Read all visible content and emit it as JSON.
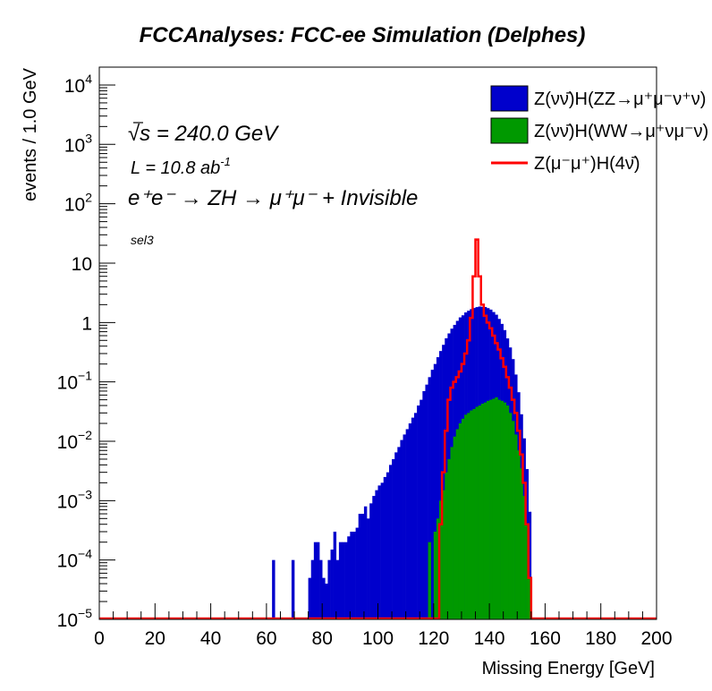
{
  "chart_data": {
    "type": "histogram",
    "title": "FCCAnalyses: FCC-ee Simulation (Delphes)",
    "xlabel": "Missing Energy [GeV]",
    "ylabel": "events / 1.0 GeV",
    "xlim": [
      0,
      200
    ],
    "ylim": [
      1e-05,
      20000
    ],
    "y_scale": "log",
    "bin_width": 1,
    "x_ticks": [
      "0",
      "20",
      "40",
      "60",
      "80",
      "100",
      "120",
      "140",
      "160",
      "180",
      "200"
    ],
    "y_ticks": [
      {
        "base": "10",
        "exp": "−5",
        "value": 1e-05
      },
      {
        "base": "10",
        "exp": "−4",
        "value": 0.0001
      },
      {
        "base": "10",
        "exp": "−3",
        "value": 0.001
      },
      {
        "base": "10",
        "exp": "−2",
        "value": 0.01
      },
      {
        "base": "10",
        "exp": "−1",
        "value": 0.1
      },
      {
        "base": "1",
        "exp": "",
        "value": 1
      },
      {
        "base": "10",
        "exp": "",
        "value": 10
      },
      {
        "base": "10",
        "exp": "2",
        "value": 100
      },
      {
        "base": "10",
        "exp": "3",
        "value": 1000
      },
      {
        "base": "10",
        "exp": "4",
        "value": 10000
      }
    ],
    "annotations": {
      "sqrt_s": "√s = 240.0 GeV",
      "lumi": "L = 10.8 ab",
      "lumi_exp": "-1",
      "process": "e⁺e⁻ → ZH → μ⁺μ⁻ + Invisible",
      "selection": "sel3"
    },
    "legend_position": "top-right",
    "series": [
      {
        "name": "Z(νν̄)H(ZZ→μ⁺μ⁻ν⁺ν)",
        "style": "stacked-fill",
        "color": "#0000cc",
        "bin_low_edges": [
          62,
          69,
          75,
          76,
          77,
          78,
          79,
          80,
          81,
          82,
          83,
          84,
          85,
          86,
          87,
          88,
          89,
          90,
          91,
          92,
          93,
          94,
          95,
          96,
          97,
          98,
          99,
          100,
          101,
          102,
          103,
          104,
          105,
          106,
          107,
          108,
          109,
          110,
          111,
          112,
          113,
          114,
          115,
          116,
          117,
          118,
          119,
          120,
          121,
          122,
          123,
          124,
          125,
          126,
          127,
          128,
          129,
          130,
          131,
          132,
          133,
          134,
          135,
          136,
          137,
          138,
          139,
          140,
          141,
          142,
          143,
          144,
          145,
          146,
          147,
          148,
          149,
          150,
          151,
          152,
          153,
          154
        ],
        "values": [
          0.0001,
          0.0001,
          5e-05,
          0.0001,
          0.0002,
          0.0002,
          0.0001,
          5e-05,
          4e-05,
          0.0001,
          0.00015,
          0.0003,
          0.0001,
          0.0002,
          0.0002,
          0.0002,
          0.00025,
          0.0003,
          0.0003,
          0.00035,
          0.0006,
          0.0006,
          0.0008,
          0.0005,
          0.0009,
          0.0012,
          0.0015,
          0.0018,
          0.002,
          0.0025,
          0.003,
          0.004,
          0.005,
          0.0065,
          0.008,
          0.0105,
          0.013,
          0.016,
          0.02,
          0.025,
          0.03,
          0.04,
          0.05,
          0.07,
          0.09,
          0.12,
          0.16,
          0.2,
          0.26,
          0.33,
          0.42,
          0.54,
          0.65,
          0.78,
          0.9,
          1.05,
          1.2,
          1.3,
          1.45,
          1.55,
          1.65,
          1.72,
          1.78,
          1.82,
          1.8,
          1.78,
          1.7,
          1.6,
          1.45,
          1.3,
          1.1,
          0.9,
          0.7,
          0.5,
          0.35,
          0.22,
          0.12,
          0.06,
          0.025,
          0.01,
          0.003,
          0.0006
        ]
      },
      {
        "name": "Z(νν̄)H(WW→μ⁺νμ⁻ν)",
        "style": "stacked-fill",
        "color": "#009900",
        "bin_low_edges": [
          118,
          120,
          121,
          122,
          123,
          124,
          125,
          126,
          127,
          128,
          129,
          130,
          131,
          132,
          133,
          134,
          135,
          136,
          137,
          138,
          139,
          140,
          141,
          142,
          143,
          144,
          145,
          146,
          147,
          148,
          149,
          150,
          151,
          152,
          153,
          154
        ],
        "values": [
          0.0002,
          0.0003,
          0.0005,
          0.001,
          0.0015,
          0.003,
          0.005,
          0.008,
          0.012,
          0.016,
          0.02,
          0.024,
          0.028,
          0.03,
          0.033,
          0.035,
          0.038,
          0.04,
          0.043,
          0.045,
          0.048,
          0.05,
          0.052,
          0.055,
          0.05,
          0.048,
          0.045,
          0.04,
          0.03,
          0.022,
          0.013,
          0.007,
          0.0035,
          0.0012,
          0.0004,
          5e-05
        ]
      },
      {
        "name": "Z(μ⁻μ⁺)H(4ν̄)",
        "style": "line",
        "color": "#ff0000",
        "bin_low_edges": [
          122,
          123,
          124,
          125,
          126,
          127,
          128,
          129,
          130,
          131,
          132,
          133,
          134,
          135,
          136,
          137,
          138,
          139,
          140,
          141,
          142,
          143,
          144,
          145,
          146,
          147,
          148,
          149,
          150,
          151,
          152,
          153,
          154
        ],
        "values": [
          0.0004,
          0.003,
          0.015,
          0.05,
          0.08,
          0.1,
          0.12,
          0.15,
          0.2,
          0.3,
          0.5,
          1.2,
          6.0,
          25.0,
          6.0,
          2.0,
          1.3,
          1.0,
          0.8,
          0.6,
          0.45,
          0.35,
          0.25,
          0.18,
          0.12,
          0.08,
          0.05,
          0.03,
          0.015,
          0.006,
          0.002,
          0.0004,
          5e-05
        ]
      }
    ]
  }
}
